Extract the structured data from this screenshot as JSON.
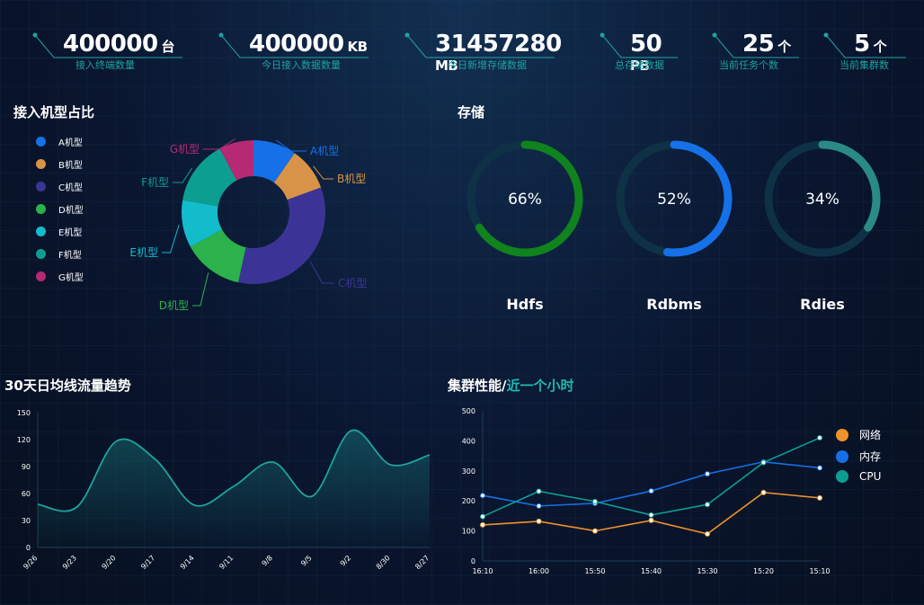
{
  "stats": [
    {
      "value": "400000",
      "unit": "台",
      "label": "接入终端数量"
    },
    {
      "value": "400000",
      "unit": "KB",
      "label": "今日接入数据数量"
    },
    {
      "value": "31457280",
      "unit": "MB",
      "label": "今日新增存储数据"
    },
    {
      "value": "50",
      "unit": "PB",
      "label": "总存储数据"
    },
    {
      "value": "25",
      "unit": "个",
      "label": "当前任务个数"
    },
    {
      "value": "5",
      "unit": "个",
      "label": "当前集群数"
    }
  ],
  "sections": {
    "pie_title": "接入机型占比",
    "storage_title": "存储",
    "trend_title": "30天日均线流量趋势",
    "perf_title": "集群性能/",
    "perf_title_accent": "近一个小时"
  },
  "chart_data": [
    {
      "type": "pie",
      "variant": "donut",
      "categories": [
        "A机型",
        "B机型",
        "C机型",
        "D机型",
        "E机型",
        "F机型",
        "G机型"
      ],
      "values": [
        10,
        10,
        35,
        14,
        11,
        15,
        8
      ],
      "colors": [
        "#1670e8",
        "#d99348",
        "#3b3496",
        "#2bb24c",
        "#13bccb",
        "#0d9e92",
        "#b52a73"
      ],
      "legend_position": "left"
    },
    {
      "type": "pie",
      "variant": "gauge-rings",
      "categories": [
        "Hdfs",
        "Rdbms",
        "Rdies"
      ],
      "values": [
        66,
        52,
        34
      ],
      "labels": [
        "66%",
        "52%",
        "34%"
      ],
      "colors": [
        "#10821e",
        "#1670e8",
        "#2a8a86"
      ],
      "track_color": "#0f3146"
    },
    {
      "type": "area",
      "x": [
        "9/26",
        "9/23",
        "9/20",
        "9/17",
        "9/14",
        "9/11",
        "9/8",
        "9/5",
        "9/2",
        "8/30",
        "8/27"
      ],
      "series": [
        {
          "values": [
            48,
            45,
            118,
            98,
            47,
            68,
            95,
            57,
            130,
            92,
            103
          ]
        }
      ],
      "ylim": [
        0,
        150
      ],
      "yticks": [
        0,
        30,
        60,
        90,
        120,
        150
      ],
      "color": "#1ea39b",
      "grid": false
    },
    {
      "type": "line",
      "x": [
        "16:10",
        "16:00",
        "15:50",
        "15:40",
        "15:30",
        "15:20",
        "15:10"
      ],
      "series": [
        {
          "name": "网络",
          "values": [
            120,
            132,
            100,
            135,
            90,
            228,
            210
          ],
          "color": "#f0922a"
        },
        {
          "name": "内存",
          "values": [
            218,
            183,
            192,
            233,
            290,
            330,
            310
          ],
          "color": "#1670e8"
        },
        {
          "name": "CPU",
          "values": [
            148,
            232,
            198,
            153,
            188,
            328,
            410
          ],
          "color": "#0d9e92"
        }
      ],
      "ylim": [
        0,
        500
      ],
      "yticks": [
        0,
        100,
        200,
        300,
        400,
        500
      ],
      "legend_position": "right",
      "grid": false
    }
  ]
}
